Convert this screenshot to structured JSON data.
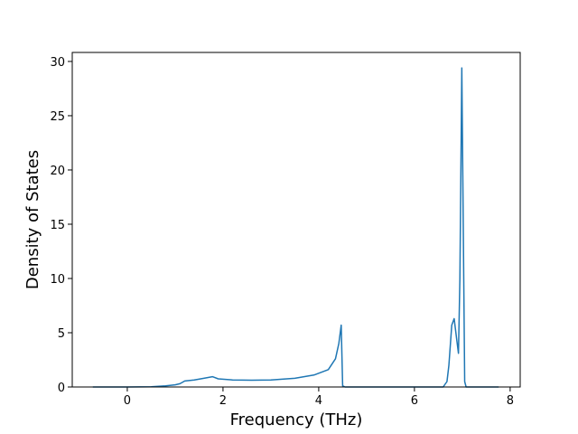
{
  "chart_data": {
    "type": "line",
    "x_label": "Frequency (THz)",
    "y_label": "Density of States",
    "x": [
      -0.72,
      0,
      0.5,
      0.8,
      1.0,
      1.1,
      1.2,
      1.4,
      1.6,
      1.78,
      1.9,
      2.2,
      2.6,
      3.0,
      3.5,
      3.9,
      4.2,
      4.35,
      4.42,
      4.47,
      4.5,
      4.55,
      6.6,
      6.68,
      6.72,
      6.78,
      6.83,
      6.88,
      6.92,
      6.95,
      6.99,
      7.02,
      7.05,
      7.08,
      7.76
    ],
    "series": [
      {
        "color": "#1f77b4",
        "values": [
          0,
          0,
          0.02,
          0.1,
          0.2,
          0.3,
          0.55,
          0.65,
          0.8,
          0.95,
          0.75,
          0.65,
          0.62,
          0.65,
          0.8,
          1.1,
          1.6,
          2.6,
          4.0,
          5.7,
          0.1,
          0,
          0,
          0.5,
          2.0,
          5.7,
          6.3,
          4.5,
          3.1,
          10,
          29.4,
          15,
          0.5,
          0,
          0
        ]
      }
    ],
    "xlim": [
      -1.15,
      8.21
    ],
    "xticks": [
      0,
      2,
      4,
      6,
      8
    ],
    "ylim": [
      0,
      30.83
    ],
    "yticks": [
      0,
      5,
      10,
      15,
      20,
      25,
      30
    ]
  }
}
